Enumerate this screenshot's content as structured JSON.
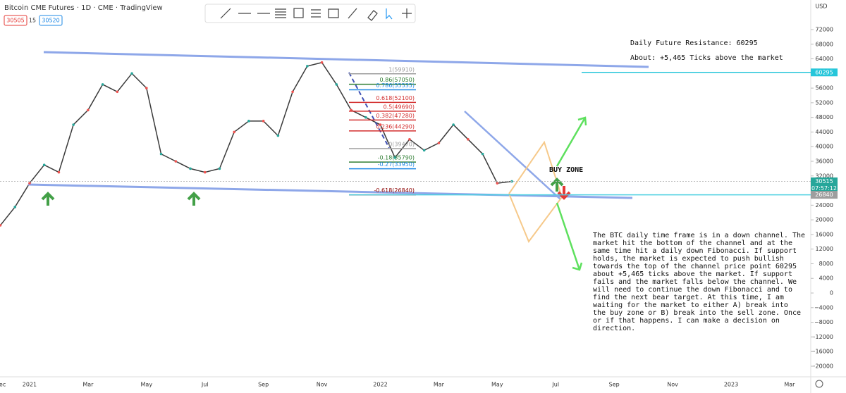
{
  "header": {
    "title": "Bitcoin CME Futures · 1D · CME · TradingView",
    "bid": "30505",
    "spread": "15",
    "ask": "30520"
  },
  "chart_data": {
    "type": "line",
    "color": "#3a3a3a",
    "categories": [
      "Dec",
      null,
      "2021",
      null,
      null,
      null,
      "Mar",
      null,
      null,
      null,
      "May",
      null,
      null,
      null,
      "Jul",
      null,
      null,
      null,
      "Sep",
      null,
      null,
      null,
      "Nov",
      null,
      null,
      null,
      "2022",
      null,
      null,
      null,
      "Mar",
      null,
      null,
      null,
      "May",
      null,
      null,
      null,
      "Jul",
      null,
      null,
      null,
      "Sep",
      null,
      null,
      null,
      "Nov",
      null,
      null,
      null,
      "2023",
      null,
      null,
      null,
      "Mar"
    ],
    "values": [
      18500,
      23500,
      30000,
      35000,
      33000,
      46000,
      50000,
      57000,
      55000,
      60000,
      56000,
      38000,
      36000,
      34000,
      33000,
      34000,
      44000,
      47000,
      47000,
      43000,
      55000,
      62000,
      63000,
      57000,
      50000,
      48000,
      46000,
      37000,
      42000,
      39000,
      41000,
      46000,
      42000,
      38000,
      30000,
      30515,
      null,
      null,
      null,
      null,
      null,
      null,
      null,
      null,
      null,
      null,
      null,
      null,
      null,
      null,
      null,
      null,
      null,
      null,
      null
    ],
    "ylim": [
      -22900,
      80080
    ],
    "yticks": [
      {
        "value": -20000,
        "label": "−20000"
      },
      {
        "value": -16000,
        "label": "−16000"
      },
      {
        "value": -12000,
        "label": "−12000"
      },
      {
        "value": -8000,
        "label": "−8000"
      },
      {
        "value": -4000,
        "label": "−4000"
      },
      0,
      4000,
      8000,
      12000,
      16000,
      20000,
      24000,
      28000,
      32000,
      36000,
      40000,
      44000,
      48000,
      52000,
      56000,
      60000,
      64000,
      68000,
      72000
    ],
    "currency": "USD",
    "price_labels": [
      {
        "value": 60295,
        "color": "#26c6da"
      },
      {
        "value": 30515,
        "color": "#26a69a"
      },
      {
        "value": 26840,
        "color": "#9e9e9e"
      }
    ],
    "timer": "07:57:12",
    "fib_levels": [
      {
        "label": "1(59910)",
        "value": 59910,
        "color": "#9e9e9e"
      },
      {
        "label": "0.86(57050)",
        "value": 57050,
        "color": "#2e7d32"
      },
      {
        "label": "0.786(55535)",
        "value": 55535,
        "color": "#1e88e5"
      },
      {
        "label": "0.618(52100)",
        "value": 52100,
        "color": "#d32f2f"
      },
      {
        "label": "0.5(49690)",
        "value": 49690,
        "color": "#d32f2f"
      },
      {
        "label": "0.382(47280)",
        "value": 47280,
        "color": "#d32f2f"
      },
      {
        "label": "0.236(44290)",
        "value": 44290,
        "color": "#d32f2f"
      },
      {
        "label": "0(39470)",
        "value": 39470,
        "color": "#9e9e9e"
      },
      {
        "label": "-0.18(35790)",
        "value": 35790,
        "color": "#2e7d32"
      },
      {
        "label": "-0.27(33950)",
        "value": 33950,
        "color": "#1e88e5"
      },
      {
        "label": "-0.618(26840)",
        "value": 26840,
        "color": "#8b0000"
      }
    ],
    "annotations": {
      "resistance": "Daily Future Resistance: 60295",
      "about": "About: +5,465 Ticks above the market",
      "buy_zone": "BUY ZONE",
      "paragraph": [
        "The BTC daily time frame is in a down channel. The",
        "market hit the bottom of the channel and at the",
        "same time hit a daily down Fibonacci. If support",
        "holds, the market is expected to push bullish",
        "towards the top of the channel price point 60295",
        "about +5,465 ticks above the market. If support",
        "fails and the market falls below the channel. We",
        "will need to continue the down Fibonacci and to",
        "find the next bear target. At this time, I am",
        "waiting for the market to either A) break into",
        "the buy zone or B) break into the sell zone. Once",
        "or if that happens. I can make a decision on",
        "direction."
      ]
    }
  }
}
